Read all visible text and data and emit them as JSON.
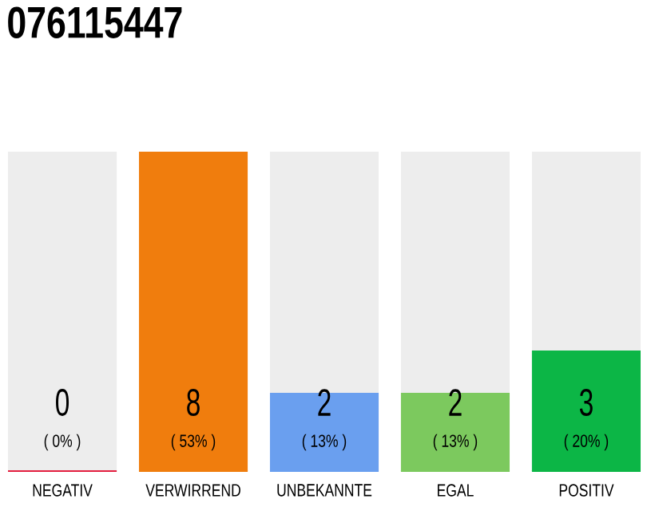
{
  "chart_data": {
    "type": "bar",
    "title": "076115447",
    "categories": [
      "NEGATIV",
      "VERWIRREND",
      "UNBEKANNTE",
      "EGAL",
      "POSITIV"
    ],
    "values": [
      0,
      53,
      13,
      13,
      20
    ],
    "value_labels": [
      "( 0% )",
      "( 53% )",
      "( 13% )",
      "( 13% )",
      "( 20% )"
    ],
    "annotations": [
      "0",
      "8",
      "2",
      "2",
      "3"
    ],
    "bands": [
      {
        "axis": "x",
        "from": "NEGATIV",
        "to": "NEGATIV",
        "color": "#ededed"
      },
      {
        "axis": "x",
        "from": "UNBEKANNTE",
        "to": "UNBEKANNTE",
        "color": "#ededed"
      },
      {
        "axis": "x",
        "from": "EGAL",
        "to": "EGAL",
        "color": "#ededed"
      },
      {
        "axis": "x",
        "from": "POSITIV",
        "to": "POSITIV",
        "color": "#ededed"
      }
    ],
    "colors": [
      "#e41e3f",
      "#f07d0d",
      "#6a9fef",
      "#7cc95e",
      "#0cb646"
    ]
  }
}
